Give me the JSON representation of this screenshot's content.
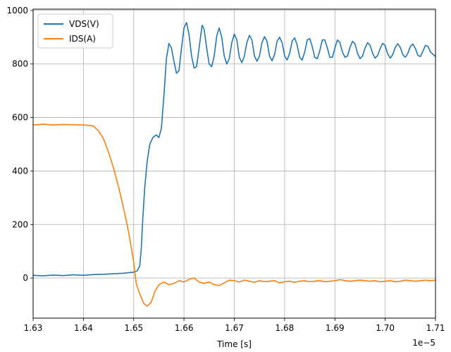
{
  "chart_data": {
    "type": "line",
    "title": "",
    "xlabel": "Time [s]",
    "ylabel": "",
    "x_offset_label": "1e−5",
    "xlim": [
      1.63,
      1.71
    ],
    "ylim": [
      -150,
      1005
    ],
    "x_ticks": [
      1.63,
      1.64,
      1.65,
      1.66,
      1.67,
      1.68,
      1.69,
      1.7,
      1.71
    ],
    "x_tick_labels": [
      "1.63",
      "1.64",
      "1.65",
      "1.66",
      "1.67",
      "1.68",
      "1.69",
      "1.70",
      "1.71"
    ],
    "y_ticks": [
      0,
      200,
      400,
      600,
      800,
      1000
    ],
    "y_tick_labels": [
      "0",
      "200",
      "400",
      "600",
      "800",
      "1000"
    ],
    "grid": true,
    "legend_position": "top-left",
    "series": [
      {
        "name": "VDS(V)",
        "color": "#1f77b4",
        "points": [
          [
            1.63,
            10
          ],
          [
            1.632,
            8
          ],
          [
            1.634,
            11
          ],
          [
            1.636,
            9
          ],
          [
            1.638,
            12
          ],
          [
            1.64,
            10
          ],
          [
            1.642,
            13
          ],
          [
            1.644,
            14
          ],
          [
            1.646,
            16
          ],
          [
            1.648,
            18
          ],
          [
            1.65,
            22
          ],
          [
            1.6507,
            27
          ],
          [
            1.6512,
            45
          ],
          [
            1.6515,
            110
          ],
          [
            1.6518,
            220
          ],
          [
            1.6522,
            340
          ],
          [
            1.6527,
            440
          ],
          [
            1.6532,
            500
          ],
          [
            1.6538,
            525
          ],
          [
            1.6545,
            535
          ],
          [
            1.655,
            525
          ],
          [
            1.6555,
            560
          ],
          [
            1.656,
            680
          ],
          [
            1.6565,
            820
          ],
          [
            1.657,
            877
          ],
          [
            1.6575,
            860
          ],
          [
            1.658,
            810
          ],
          [
            1.6585,
            765
          ],
          [
            1.659,
            775
          ],
          [
            1.6595,
            860
          ],
          [
            1.66,
            935
          ],
          [
            1.6605,
            955
          ],
          [
            1.661,
            910
          ],
          [
            1.6615,
            830
          ],
          [
            1.662,
            785
          ],
          [
            1.6625,
            790
          ],
          [
            1.663,
            860
          ],
          [
            1.6636,
            945
          ],
          [
            1.664,
            930
          ],
          [
            1.6645,
            860
          ],
          [
            1.665,
            800
          ],
          [
            1.6655,
            790
          ],
          [
            1.666,
            830
          ],
          [
            1.6665,
            905
          ],
          [
            1.667,
            935
          ],
          [
            1.6675,
            900
          ],
          [
            1.668,
            830
          ],
          [
            1.6685,
            800
          ],
          [
            1.669,
            820
          ],
          [
            1.6695,
            880
          ],
          [
            1.67,
            912
          ],
          [
            1.6705,
            890
          ],
          [
            1.671,
            825
          ],
          [
            1.6715,
            805
          ],
          [
            1.672,
            830
          ],
          [
            1.6725,
            880
          ],
          [
            1.673,
            907
          ],
          [
            1.6735,
            890
          ],
          [
            1.674,
            830
          ],
          [
            1.6745,
            810
          ],
          [
            1.675,
            830
          ],
          [
            1.6755,
            880
          ],
          [
            1.676,
            902
          ],
          [
            1.6765,
            885
          ],
          [
            1.677,
            830
          ],
          [
            1.6775,
            812
          ],
          [
            1.678,
            835
          ],
          [
            1.6785,
            885
          ],
          [
            1.679,
            900
          ],
          [
            1.6795,
            880
          ],
          [
            1.68,
            830
          ],
          [
            1.6805,
            815
          ],
          [
            1.681,
            840
          ],
          [
            1.6815,
            885
          ],
          [
            1.682,
            898
          ],
          [
            1.6825,
            870
          ],
          [
            1.683,
            825
          ],
          [
            1.6835,
            815
          ],
          [
            1.684,
            845
          ],
          [
            1.6845,
            890
          ],
          [
            1.685,
            895
          ],
          [
            1.6855,
            865
          ],
          [
            1.686,
            825
          ],
          [
            1.6865,
            820
          ],
          [
            1.687,
            850
          ],
          [
            1.6875,
            890
          ],
          [
            1.688,
            890
          ],
          [
            1.6885,
            860
          ],
          [
            1.689,
            825
          ],
          [
            1.6895,
            825
          ],
          [
            1.69,
            860
          ],
          [
            1.6905,
            890
          ],
          [
            1.691,
            880
          ],
          [
            1.6915,
            845
          ],
          [
            1.692,
            825
          ],
          [
            1.6925,
            830
          ],
          [
            1.693,
            862
          ],
          [
            1.6935,
            885
          ],
          [
            1.694,
            875
          ],
          [
            1.6945,
            840
          ],
          [
            1.695,
            820
          ],
          [
            1.6955,
            830
          ],
          [
            1.696,
            860
          ],
          [
            1.6965,
            880
          ],
          [
            1.697,
            870
          ],
          [
            1.6975,
            840
          ],
          [
            1.698,
            822
          ],
          [
            1.6985,
            832
          ],
          [
            1.699,
            858
          ],
          [
            1.6995,
            878
          ],
          [
            1.7,
            868
          ],
          [
            1.7005,
            838
          ],
          [
            1.701,
            822
          ],
          [
            1.7015,
            835
          ],
          [
            1.702,
            862
          ],
          [
            1.7025,
            876
          ],
          [
            1.703,
            862
          ],
          [
            1.7035,
            835
          ],
          [
            1.704,
            825
          ],
          [
            1.7045,
            840
          ],
          [
            1.705,
            865
          ],
          [
            1.7055,
            875
          ],
          [
            1.706,
            858
          ],
          [
            1.7065,
            832
          ],
          [
            1.707,
            828
          ],
          [
            1.7075,
            848
          ],
          [
            1.708,
            870
          ],
          [
            1.7085,
            866
          ],
          [
            1.709,
            845
          ],
          [
            1.71,
            828
          ]
        ]
      },
      {
        "name": "IDS(A)",
        "color": "#ff7f0e",
        "points": [
          [
            1.63,
            572
          ],
          [
            1.632,
            575
          ],
          [
            1.634,
            572
          ],
          [
            1.636,
            574
          ],
          [
            1.638,
            573
          ],
          [
            1.64,
            572
          ],
          [
            1.641,
            571
          ],
          [
            1.642,
            568
          ],
          [
            1.643,
            550
          ],
          [
            1.644,
            520
          ],
          [
            1.645,
            470
          ],
          [
            1.646,
            410
          ],
          [
            1.647,
            340
          ],
          [
            1.648,
            260
          ],
          [
            1.649,
            170
          ],
          [
            1.65,
            60
          ],
          [
            1.6505,
            -20
          ],
          [
            1.6512,
            -60
          ],
          [
            1.652,
            -95
          ],
          [
            1.6527,
            -105
          ],
          [
            1.6535,
            -90
          ],
          [
            1.6542,
            -50
          ],
          [
            1.655,
            -25
          ],
          [
            1.656,
            -15
          ],
          [
            1.657,
            -25
          ],
          [
            1.658,
            -20
          ],
          [
            1.659,
            -10
          ],
          [
            1.66,
            -15
          ],
          [
            1.661,
            -5
          ],
          [
            1.662,
            0
          ],
          [
            1.663,
            -15
          ],
          [
            1.664,
            -20
          ],
          [
            1.665,
            -15
          ],
          [
            1.666,
            -25
          ],
          [
            1.667,
            -28
          ],
          [
            1.668,
            -18
          ],
          [
            1.669,
            -8
          ],
          [
            1.67,
            -10
          ],
          [
            1.671,
            -15
          ],
          [
            1.672,
            -8
          ],
          [
            1.673,
            -12
          ],
          [
            1.674,
            -16
          ],
          [
            1.675,
            -10
          ],
          [
            1.676,
            -14
          ],
          [
            1.677,
            -12
          ],
          [
            1.678,
            -10
          ],
          [
            1.679,
            -18
          ],
          [
            1.68,
            -14
          ],
          [
            1.681,
            -12
          ],
          [
            1.682,
            -16
          ],
          [
            1.683,
            -12
          ],
          [
            1.684,
            -10
          ],
          [
            1.685,
            -14
          ],
          [
            1.686,
            -12
          ],
          [
            1.687,
            -10
          ],
          [
            1.688,
            -14
          ],
          [
            1.689,
            -12
          ],
          [
            1.69,
            -10
          ],
          [
            1.691,
            -6
          ],
          [
            1.692,
            -10
          ],
          [
            1.693,
            -12
          ],
          [
            1.694,
            -10
          ],
          [
            1.695,
            -8
          ],
          [
            1.696,
            -10
          ],
          [
            1.697,
            -12
          ],
          [
            1.698,
            -10
          ],
          [
            1.699,
            -14
          ],
          [
            1.7,
            -12
          ],
          [
            1.701,
            -10
          ],
          [
            1.702,
            -14
          ],
          [
            1.703,
            -12
          ],
          [
            1.704,
            -8
          ],
          [
            1.705,
            -10
          ],
          [
            1.706,
            -12
          ],
          [
            1.707,
            -10
          ],
          [
            1.708,
            -8
          ],
          [
            1.709,
            -10
          ],
          [
            1.71,
            -8
          ]
        ]
      }
    ]
  }
}
